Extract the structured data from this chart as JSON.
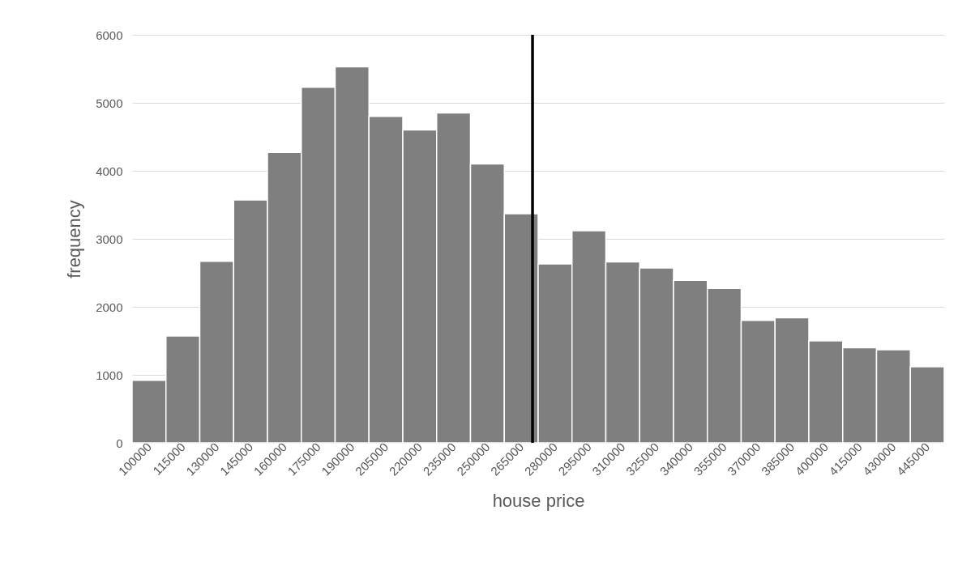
{
  "chart_data": {
    "type": "histogram",
    "xlabel": "house price",
    "ylabel": "frequency",
    "bins": [
      92500,
      107500,
      122500,
      137500,
      152500,
      167500,
      182500,
      197500,
      212500,
      227500,
      242500,
      257500,
      272500,
      287500,
      302500,
      317500,
      332500,
      347500,
      362500,
      377500,
      392500,
      407500,
      422500,
      437500,
      452500
    ],
    "values": [
      920,
      1570,
      2670,
      3570,
      4270,
      5230,
      5530,
      4800,
      4600,
      4850,
      4100,
      3370,
      2630,
      3120,
      2660,
      2570,
      2390,
      2270,
      1800,
      1840,
      1500,
      1400,
      1370,
      1120
    ],
    "color": "#7f7f7f",
    "xlim": [
      92500,
      452500
    ],
    "xticks": [
      100000,
      115000,
      130000,
      145000,
      160000,
      175000,
      190000,
      205000,
      220000,
      235000,
      250000,
      265000,
      280000,
      295000,
      310000,
      325000,
      340000,
      355000,
      370000,
      385000,
      400000,
      415000,
      430000,
      445000
    ],
    "ylim": [
      0,
      6000
    ],
    "yticks": [
      0,
      1000,
      2000,
      3000,
      4000,
      5000,
      6000
    ],
    "grid": "y",
    "ref_lines": [
      {
        "axis": "x",
        "value": 270000,
        "color": "#000000"
      }
    ]
  }
}
